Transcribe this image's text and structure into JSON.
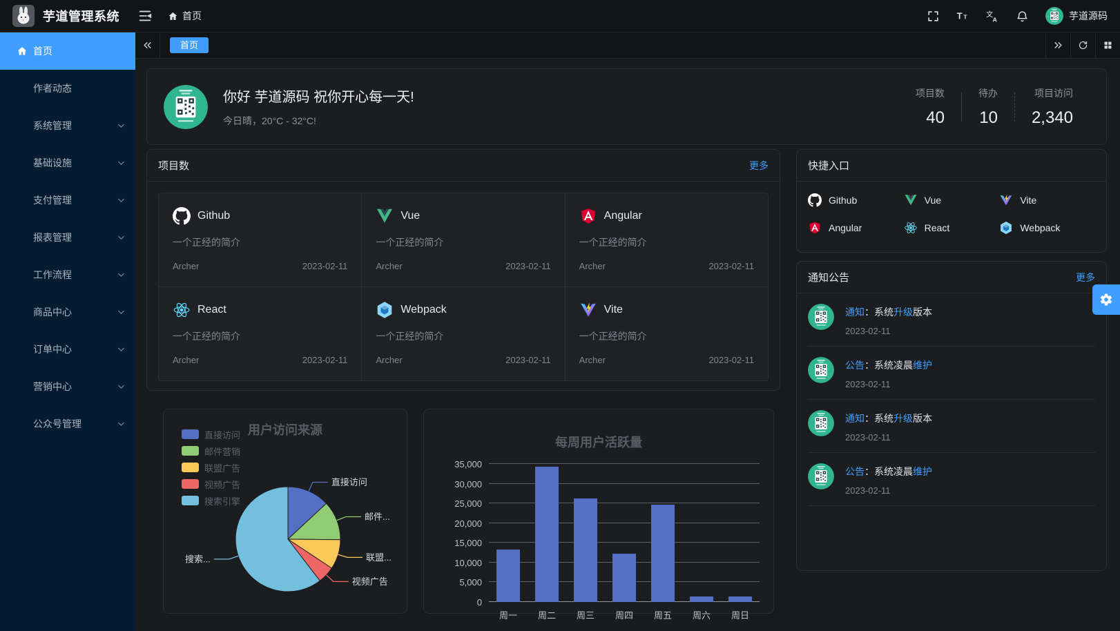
{
  "header": {
    "app_title": "芋道管理系统",
    "breadcrumb_home": "首页",
    "username": "芋道源码"
  },
  "tabbar": {
    "active_tab": "首页"
  },
  "sidebar": {
    "items": [
      {
        "label": "首页",
        "active": true,
        "icon": "home-icon",
        "chevron": false
      },
      {
        "label": "作者动态",
        "active": false,
        "icon": null,
        "chevron": false
      },
      {
        "label": "系统管理",
        "active": false,
        "icon": null,
        "chevron": true
      },
      {
        "label": "基础设施",
        "active": false,
        "icon": null,
        "chevron": true
      },
      {
        "label": "支付管理",
        "active": false,
        "icon": null,
        "chevron": true
      },
      {
        "label": "报表管理",
        "active": false,
        "icon": null,
        "chevron": true
      },
      {
        "label": "工作流程",
        "active": false,
        "icon": null,
        "chevron": true
      },
      {
        "label": "商品中心",
        "active": false,
        "icon": null,
        "chevron": true
      },
      {
        "label": "订单中心",
        "active": false,
        "icon": null,
        "chevron": true
      },
      {
        "label": "营销中心",
        "active": false,
        "icon": null,
        "chevron": true
      },
      {
        "label": "公众号管理",
        "active": false,
        "icon": null,
        "chevron": true
      }
    ]
  },
  "welcome": {
    "greeting": "你好 芋道源码 祝你开心每一天!",
    "weather": "今日晴，20°C - 32°C!",
    "stats": [
      {
        "label": "项目数",
        "value": "40"
      },
      {
        "label": "待办",
        "value": "10"
      },
      {
        "label": "项目访问",
        "value": "2,340"
      }
    ]
  },
  "projects": {
    "title": "项目数",
    "more_label": "更多",
    "items": [
      {
        "name": "Github",
        "icon": "github-icon",
        "desc": "一个正经的简介",
        "author": "Archer",
        "date": "2023-02-11"
      },
      {
        "name": "Vue",
        "icon": "vue-icon",
        "desc": "一个正经的简介",
        "author": "Archer",
        "date": "2023-02-11"
      },
      {
        "name": "Angular",
        "icon": "angular-icon",
        "desc": "一个正经的简介",
        "author": "Archer",
        "date": "2023-02-11"
      },
      {
        "name": "React",
        "icon": "react-icon",
        "desc": "一个正经的简介",
        "author": "Archer",
        "date": "2023-02-11"
      },
      {
        "name": "Webpack",
        "icon": "webpack-icon",
        "desc": "一个正经的简介",
        "author": "Archer",
        "date": "2023-02-11"
      },
      {
        "name": "Vite",
        "icon": "vite-icon",
        "desc": "一个正经的简介",
        "author": "Archer",
        "date": "2023-02-11"
      }
    ]
  },
  "quick_entry": {
    "title": "快捷入口",
    "items": [
      {
        "name": "Github",
        "icon": "github-icon"
      },
      {
        "name": "Vue",
        "icon": "vue-icon"
      },
      {
        "name": "Vite",
        "icon": "vite-icon"
      },
      {
        "name": "Angular",
        "icon": "angular-icon"
      },
      {
        "name": "React",
        "icon": "react-icon"
      },
      {
        "name": "Webpack",
        "icon": "webpack-icon"
      }
    ]
  },
  "notices": {
    "title": "通知公告",
    "more_label": "更多",
    "items": [
      {
        "segments": [
          {
            "text": "通知",
            "highlight": true
          },
          {
            "text": "：系统",
            "highlight": false
          },
          {
            "text": "升级",
            "highlight": true
          },
          {
            "text": "版本",
            "highlight": false
          }
        ],
        "date": "2023-02-11"
      },
      {
        "segments": [
          {
            "text": "公告",
            "highlight": true
          },
          {
            "text": "：系统凌晨",
            "highlight": false
          },
          {
            "text": "维护",
            "highlight": true
          }
        ],
        "date": "2023-02-11"
      },
      {
        "segments": [
          {
            "text": "通知",
            "highlight": true
          },
          {
            "text": "：系统",
            "highlight": false
          },
          {
            "text": "升级",
            "highlight": true
          },
          {
            "text": "版本",
            "highlight": false
          }
        ],
        "date": "2023-02-11"
      },
      {
        "segments": [
          {
            "text": "公告",
            "highlight": true
          },
          {
            "text": "：系统凌晨",
            "highlight": false
          },
          {
            "text": "维护",
            "highlight": true
          }
        ],
        "date": "2023-02-11"
      }
    ]
  },
  "chart_data": [
    {
      "type": "pie",
      "title": "用户访问来源",
      "legend_position": "left",
      "legend": [
        "直接访问",
        "邮件营销",
        "联盟广告",
        "视频广告",
        "搜索引擎"
      ],
      "series": [
        {
          "name": "直接访问",
          "value": 335,
          "color": "#5470c6",
          "label": "直接访问"
        },
        {
          "name": "邮件营销",
          "value": 310,
          "color": "#91cc75",
          "label": "邮件..."
        },
        {
          "name": "联盟广告",
          "value": 234,
          "color": "#fac858",
          "label": "联盟..."
        },
        {
          "name": "视频广告",
          "value": 135,
          "color": "#ee6666",
          "label": "视频广告"
        },
        {
          "name": "搜索引擎",
          "value": 1548,
          "color": "#73c0de",
          "label": "搜索..."
        }
      ]
    },
    {
      "type": "bar",
      "title": "每周用户活跃量",
      "categories": [
        "周一",
        "周二",
        "周三",
        "周四",
        "周五",
        "周六",
        "周日"
      ],
      "values": [
        13253,
        34235,
        26321,
        12340,
        24643,
        1322,
        1324
      ],
      "ylim": [
        0,
        35000
      ],
      "ytick_step": 5000,
      "bar_color": "#5470c6",
      "grid": true
    }
  ],
  "colors": {
    "accent": "#409eff",
    "sidebar_bg": "#041c32",
    "panel_bg": "#1c1d1f"
  }
}
